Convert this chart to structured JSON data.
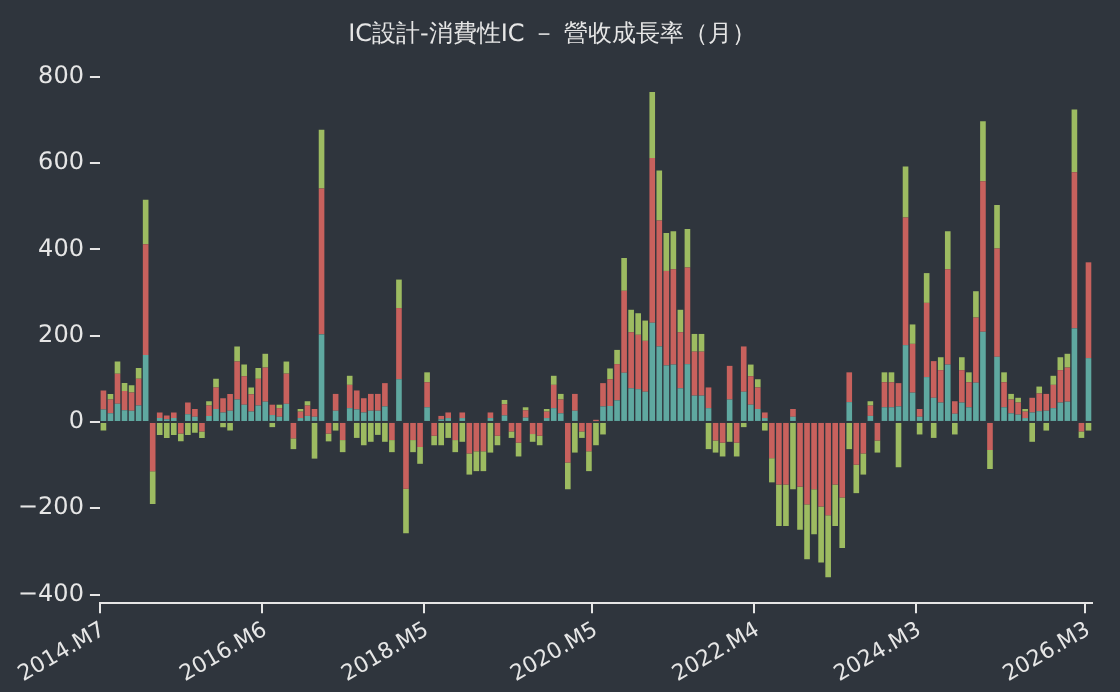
{
  "chart_data": {
    "type": "bar",
    "title": "IC設計-消費性IC － 營收成長率（月）",
    "stacked": true,
    "grid": false,
    "legend": false,
    "categories": [
      "2014.M7",
      null,
      null,
      null,
      null,
      null,
      null,
      null,
      null,
      null,
      null,
      null,
      null,
      null,
      null,
      null,
      null,
      null,
      null,
      null,
      null,
      null,
      null,
      "2016.M6",
      null,
      null,
      null,
      null,
      null,
      null,
      null,
      null,
      null,
      null,
      null,
      null,
      null,
      null,
      null,
      null,
      null,
      null,
      null,
      null,
      null,
      null,
      "2018.M5",
      null,
      null,
      null,
      null,
      null,
      null,
      null,
      null,
      null,
      null,
      null,
      null,
      null,
      null,
      null,
      null,
      null,
      null,
      null,
      null,
      null,
      null,
      null,
      "2020.M5",
      null,
      null,
      null,
      null,
      null,
      null,
      null,
      null,
      null,
      null,
      null,
      null,
      null,
      null,
      null,
      null,
      null,
      null,
      null,
      null,
      null,
      null,
      "2022.M4",
      null,
      null,
      null,
      null,
      null,
      null,
      null,
      null,
      null,
      null,
      null,
      null,
      null,
      null,
      null,
      null,
      null,
      null,
      null,
      null,
      null,
      null,
      "2024.M3",
      null,
      null,
      null,
      null,
      null,
      null,
      null,
      null,
      null,
      null,
      null,
      null,
      null,
      null,
      null,
      null,
      null,
      null,
      null,
      null,
      null,
      null,
      null,
      "2026.M3"
    ],
    "ylim": [
      -420,
      800
    ],
    "yticks": [
      -400,
      -200,
      0,
      200,
      400,
      600,
      800
    ],
    "series": [
      {
        "color": "#5fa8a0",
        "values": [
          29,
          20,
          42,
          27,
          26,
          38,
          155,
          0,
          9,
          6,
          9,
          0,
          18,
          12,
          0,
          14,
          30,
          22,
          26,
          52,
          40,
          24,
          38,
          47,
          16,
          12,
          42,
          0,
          9,
          14,
          12,
          203,
          0,
          26,
          0,
          32,
          29,
          22,
          26,
          26,
          36,
          0,
          99,
          0,
          0,
          0,
          34,
          0,
          6,
          9,
          0,
          9,
          0,
          0,
          0,
          9,
          0,
          15,
          0,
          0,
          10,
          0,
          0,
          9,
          32,
          20,
          0,
          26,
          0,
          0,
          2,
          36,
          37,
          50,
          114,
          78,
          76,
          70,
          230,
          175,
          131,
          133,
          78,
          134,
          61,
          61,
          32,
          0,
          0,
          52,
          0,
          70,
          40,
          30,
          9,
          0,
          0,
          0,
          12,
          0,
          0,
          0,
          0,
          0,
          0,
          0,
          46,
          0,
          0,
          14,
          0,
          34,
          34,
          36,
          178,
          68,
          12,
          104,
          56,
          45,
          133,
          19,
          45,
          34,
          91,
          209,
          0,
          151,
          34,
          20,
          17,
          9,
          22,
          25,
          26,
          32,
          45,
          47,
          217,
          0,
          148
        ]
      },
      {
        "color": "#c8615d",
        "values": [
          44,
          32,
          70,
          45,
          42,
          62,
          257,
          -114,
          13,
          9,
          13,
          -27,
          27,
          18,
          -22,
          24,
          50,
          33,
          39,
          88,
          66,
          40,
          62,
          79,
          24,
          20,
          70,
          -38,
          15,
          24,
          18,
          338,
          -27,
          39,
          -42,
          54,
          44,
          33,
          39,
          39,
          54,
          -42,
          165,
          -155,
          -42,
          -58,
          58,
          -32,
          8,
          13,
          -42,
          13,
          -73,
          -68,
          -68,
          13,
          -32,
          26,
          -22,
          -48,
          17,
          -28,
          -32,
          15,
          54,
          32,
          -94,
          39,
          -22,
          -68,
          3,
          54,
          62,
          84,
          190,
          130,
          126,
          118,
          382,
          292,
          219,
          221,
          130,
          224,
          102,
          102,
          48,
          -43,
          -48,
          78,
          -48,
          105,
          66,
          50,
          13,
          -84,
          -145,
          -145,
          18,
          -150,
          -191,
          -156,
          -196,
          -216,
          -145,
          -175,
          69,
          -99,
          -73,
          24,
          -43,
          58,
          58,
          54,
          296,
          113,
          18,
          172,
          85,
          75,
          221,
          29,
          75,
          58,
          151,
          349,
          -65,
          251,
          58,
          32,
          28,
          15,
          34,
          41,
          39,
          54,
          75,
          79,
          362,
          -22,
          222
        ]
      },
      {
        "color": "#9dbb61",
        "values": [
          -20,
          13,
          28,
          18,
          17,
          25,
          103,
          -76,
          -30,
          -37,
          -30,
          -18,
          -30,
          -25,
          -15,
          10,
          20,
          -12,
          -20,
          35,
          27,
          16,
          25,
          32,
          -12,
          8,
          28,
          -25,
          6,
          10,
          -85,
          136,
          -18,
          -20,
          -28,
          21,
          -37,
          -54,
          -46,
          -30,
          -46,
          -28,
          66,
          -103,
          -28,
          -39,
          23,
          -22,
          -54,
          -37,
          -28,
          -46,
          -49,
          -46,
          -46,
          -71,
          -22,
          10,
          -15,
          -32,
          7,
          -18,
          -22,
          6,
          21,
          13,
          -62,
          -71,
          -15,
          -46,
          -54,
          -29,
          25,
          33,
          76,
          52,
          50,
          47,
          153,
          116,
          88,
          88,
          52,
          89,
          41,
          41,
          -63,
          -28,
          -32,
          -46,
          -32,
          -12,
          27,
          19,
          -20,
          -56,
          -96,
          -96,
          -156,
          -100,
          -127,
          -104,
          -130,
          -144,
          -96,
          -117,
          -63,
          -66,
          -49,
          10,
          -28,
          23,
          23,
          -105,
          118,
          45,
          -29,
          69,
          -37,
          30,
          88,
          -29,
          30,
          23,
          61,
          139,
          -44,
          101,
          23,
          13,
          11,
          6,
          -46,
          16,
          -20,
          21,
          30,
          32,
          145,
          -15,
          -20
        ]
      }
    ]
  }
}
